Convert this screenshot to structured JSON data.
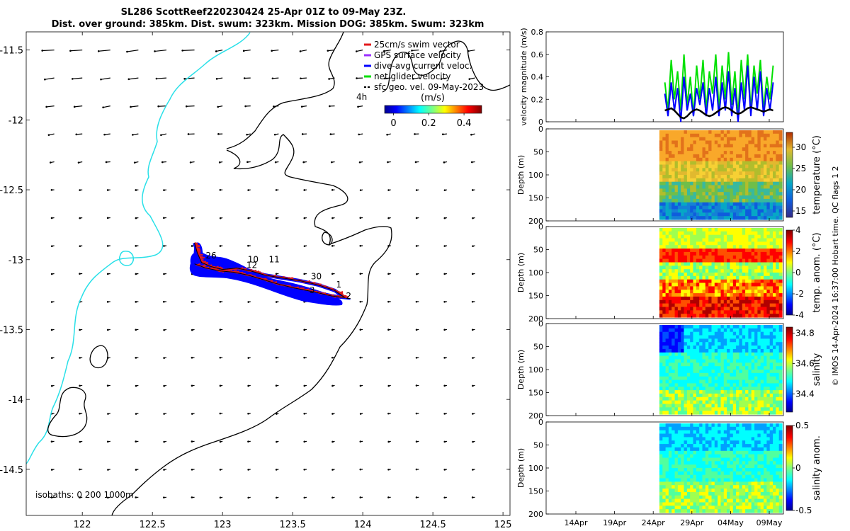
{
  "title_line1": "SL286 ScottReef220230424 25-Apr 01Z to 09-May 23Z.",
  "title_line2": "Dist. over ground: 385km. Dist. swum: 323km. Mission DOG: 385km. Swum: 323km",
  "map": {
    "xlim": [
      121.6,
      125.05
    ],
    "ylim": [
      -14.83,
      -11.37
    ],
    "xticks": [
      "122",
      "122.5",
      "123",
      "123.5",
      "124",
      "124.5",
      "125"
    ],
    "xtick_values": [
      122,
      122.5,
      123,
      123.5,
      124,
      124.5,
      125
    ],
    "yticks": [
      "-11.5",
      "-12",
      "-12.5",
      "-13",
      "-13.5",
      "-14",
      "-14.5"
    ],
    "ytick_values": [
      -11.5,
      -12,
      -12.5,
      -13,
      -13.5,
      -14,
      -14.5
    ],
    "legend": [
      {
        "label": "25cm/s swim vector",
        "color": "#e31a1c"
      },
      {
        "label": "GPS surface velocity",
        "color": "#9b30ff"
      },
      {
        "label": "dive-avg current veloc.",
        "color": "#0000ff"
      },
      {
        "label": "net glider velocity",
        "color": "#00e000"
      },
      {
        "label": "sfc geo. vel. 09-May-2023",
        "color": "#000000"
      }
    ],
    "hours_label": "4h",
    "colorbar_unit": "(m/s)",
    "colorbar_ticks": [
      "0",
      "0.2",
      "0.4"
    ],
    "colorbar_values": [
      0,
      0.2,
      0.4
    ],
    "colorbar_range": [
      -0.05,
      0.5
    ],
    "isobaths_label": "isobaths: 0   200  1000m",
    "day_labels": [
      {
        "text": "26",
        "lon": 122.88,
        "lat": -12.99
      },
      {
        "text": "10",
        "lon": 123.18,
        "lat": -13.02
      },
      {
        "text": "11",
        "lon": 123.33,
        "lat": -13.02
      },
      {
        "text": "12",
        "lon": 123.17,
        "lat": -13.06
      },
      {
        "text": "30",
        "lon": 123.63,
        "lat": -13.14
      },
      {
        "text": "1",
        "lon": 123.81,
        "lat": -13.2
      },
      {
        "text": "2",
        "lon": 123.88,
        "lat": -13.28
      },
      {
        "text": "3",
        "lon": 123.62,
        "lat": -13.24
      }
    ],
    "track_lon": [
      122.8,
      122.82,
      122.85,
      122.92,
      123.0,
      123.1,
      123.2,
      123.3,
      123.42,
      123.55,
      123.68,
      123.8,
      123.87,
      123.78,
      123.65,
      123.5,
      123.38,
      123.28,
      123.18,
      123.08,
      122.98,
      122.88,
      122.8
    ],
    "track_lat": [
      -12.88,
      -12.95,
      -13.02,
      -13.05,
      -13.07,
      -13.06,
      -13.08,
      -13.11,
      -13.13,
      -13.15,
      -13.18,
      -13.22,
      -13.27,
      -13.26,
      -13.23,
      -13.2,
      -13.17,
      -13.14,
      -13.11,
      -13.09,
      -13.08,
      -13.06,
      -13.03
    ]
  },
  "ts_panel": {
    "ylabel": "velocity magnitude (m/s)",
    "ylim": [
      0,
      0.8
    ],
    "yticks": [
      "0",
      "0.2",
      "0.4",
      "0.6",
      "0.8"
    ],
    "ytick_values": [
      0,
      0.2,
      0.4,
      0.6,
      0.8
    ],
    "xlim_days": [
      0,
      40
    ],
    "data_start_day": 25.5,
    "series": [
      {
        "name": "net glider velocity",
        "color": "#00e000",
        "values": [
          0.35,
          0.1,
          0.55,
          0.2,
          0.45,
          0.1,
          0.6,
          0.15,
          0.4,
          0.05,
          0.5,
          0.2,
          0.55,
          0.1,
          0.45,
          0.25,
          0.6,
          0.1,
          0.5,
          0.2,
          0.62,
          0.15,
          0.45,
          0.05,
          0.55,
          0.2,
          0.6,
          0.1,
          0.5,
          0.25,
          0.55,
          0.1,
          0.4,
          0.2,
          0.5
        ]
      },
      {
        "name": "dive-avg current veloc.",
        "color": "#0000ff",
        "values": [
          0.25,
          0.05,
          0.35,
          0.1,
          0.3,
          0.0,
          0.4,
          0.1,
          0.25,
          0.05,
          0.3,
          0.15,
          0.35,
          0.05,
          0.3,
          0.1,
          0.4,
          0.05,
          0.35,
          0.1,
          0.45,
          0.05,
          0.3,
          0.0,
          0.35,
          0.1,
          0.5,
          0.05,
          0.4,
          0.1,
          0.45,
          0.05,
          0.3,
          0.1,
          0.35
        ]
      },
      {
        "name": "sfc geo. vel.",
        "color": "#000000",
        "values": [
          0.1,
          0.11,
          0.12,
          0.1,
          0.07,
          0.04,
          0.03,
          0.05,
          0.08,
          0.1,
          0.11,
          0.1,
          0.08,
          0.06,
          0.05,
          0.06,
          0.08,
          0.1,
          0.12,
          0.13,
          0.12,
          0.1,
          0.08,
          0.07,
          0.08,
          0.1,
          0.12,
          0.13,
          0.12,
          0.11,
          0.1,
          0.09,
          0.1,
          0.11,
          0.1
        ]
      }
    ]
  },
  "depth_panels": [
    {
      "cb_label": "temperature (°C)",
      "cb_ticks": [
        "15",
        "20",
        "25",
        "30"
      ],
      "cb_values": [
        15,
        20,
        25,
        30
      ],
      "cb_range": [
        13.5,
        33.5
      ],
      "cmap": "parula",
      "kind": "temp"
    },
    {
      "cb_label": "temp. anom. (°C)",
      "cb_ticks": [
        "-4",
        "-2",
        "0",
        "2",
        "4"
      ],
      "cb_values": [
        -4,
        -2,
        0,
        2,
        4
      ],
      "cb_range": [
        -4,
        4
      ],
      "cmap": "jet",
      "kind": "tanom"
    },
    {
      "cb_label": "salinity",
      "cb_ticks": [
        "34.4",
        "34.6",
        "34.8"
      ],
      "cb_values": [
        34.4,
        34.6,
        34.8
      ],
      "cb_range": [
        34.28,
        34.84
      ],
      "cmap": "jet",
      "kind": "sal"
    },
    {
      "cb_label": "salinity anom.",
      "cb_ticks": [
        "-0.5",
        "0",
        "0.5"
      ],
      "cb_values": [
        -0.5,
        0,
        0.5
      ],
      "cb_range": [
        -0.5,
        0.5
      ],
      "cmap": "jet",
      "kind": "sanom"
    }
  ],
  "depth_axis": {
    "ylabel": "Depth (m)",
    "yticks": [
      "0",
      "50",
      "100",
      "150",
      "200"
    ],
    "ytick_values": [
      0,
      50,
      100,
      150,
      200
    ],
    "ylim": [
      0,
      200
    ]
  },
  "time_axis": {
    "ticks": [
      "14Apr",
      "19Apr",
      "24Apr",
      "29Apr",
      "04May",
      "09May"
    ],
    "tick_days": [
      14,
      19,
      24,
      29,
      34,
      39
    ]
  },
  "footer": "© IMOS 14-Apr-2024 16:37:00 Hobart time. QC flags 1  2"
}
